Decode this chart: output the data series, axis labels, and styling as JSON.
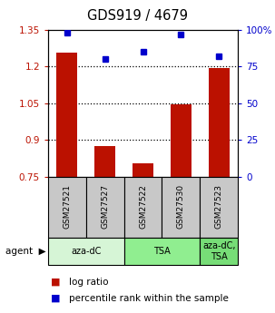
{
  "title": "GDS919 / 4679",
  "samples": [
    "GSM27521",
    "GSM27527",
    "GSM27522",
    "GSM27530",
    "GSM27523"
  ],
  "log_ratios": [
    1.255,
    0.875,
    0.805,
    1.045,
    1.195
  ],
  "percentile_ranks": [
    98,
    80,
    85,
    97,
    82
  ],
  "agent_groups": [
    {
      "label": "aza-dC",
      "indices": [
        0,
        1
      ],
      "color": "#d6f5d6"
    },
    {
      "label": "TSA",
      "indices": [
        2,
        3
      ],
      "color": "#90ee90"
    },
    {
      "label": "aza-dC,\nTSA",
      "indices": [
        4
      ],
      "color": "#77dd77"
    }
  ],
  "ylim_left": [
    0.75,
    1.35
  ],
  "ylim_right": [
    0,
    100
  ],
  "yticks_left": [
    0.75,
    0.9,
    1.05,
    1.2,
    1.35
  ],
  "yticks_right": [
    0,
    25,
    50,
    75,
    100
  ],
  "bar_color": "#bb1100",
  "dot_color": "#0000cc",
  "bg_color": "#ffffff",
  "sample_box_color": "#c8c8c8",
  "grid_yticks": [
    0.9,
    1.05,
    1.2
  ],
  "bar_baseline": 0.75
}
